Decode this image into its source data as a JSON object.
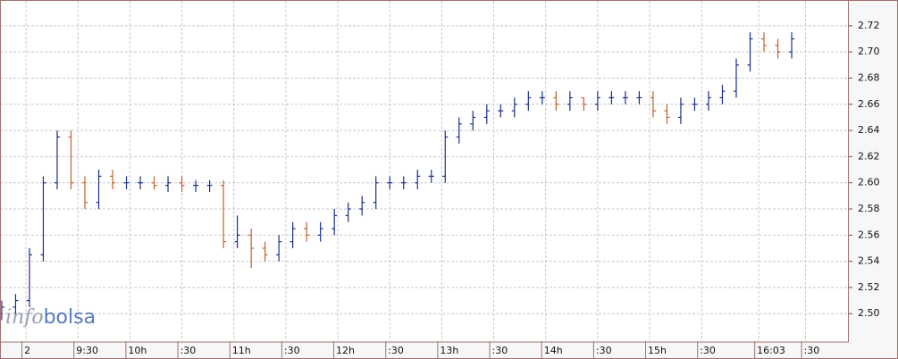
{
  "chart_data": {
    "type": "ohlc",
    "watermark": {
      "prefix": "info",
      "suffix": "bolsa"
    },
    "colors": {
      "up": "#1c2f8c",
      "down": "#c4602a"
    },
    "grid": true,
    "xlim": [
      -15,
      475
    ],
    "ylim": [
      2.479,
      2.739
    ],
    "xticks": [
      {
        "value": 0,
        "label": "2"
      },
      {
        "value": 30,
        "label": "9:30"
      },
      {
        "value": 60,
        "label": "10h"
      },
      {
        "value": 90,
        "label": ":30"
      },
      {
        "value": 120,
        "label": "11h"
      },
      {
        "value": 150,
        "label": ":30"
      },
      {
        "value": 180,
        "label": "12h"
      },
      {
        "value": 210,
        "label": ":30"
      },
      {
        "value": 240,
        "label": "13h"
      },
      {
        "value": 270,
        "label": ":30"
      },
      {
        "value": 300,
        "label": "14h"
      },
      {
        "value": 330,
        "label": ":30"
      },
      {
        "value": 360,
        "label": "15h"
      },
      {
        "value": 390,
        "label": ":30"
      },
      {
        "value": 423,
        "label": "16:03"
      },
      {
        "value": 450,
        "label": ":30"
      }
    ],
    "yticks": [
      {
        "value": 2.5,
        "label": "2.50"
      },
      2.52,
      2.54,
      2.56,
      2.58,
      {
        "value": 2.6,
        "label": "2.60"
      },
      2.62,
      2.64,
      2.66,
      2.68,
      {
        "value": 2.7,
        "label": "2.70"
      },
      2.72
    ],
    "x": [
      -14,
      -6,
      2,
      10,
      18,
      26,
      34,
      42,
      50,
      58,
      66,
      74,
      82,
      90,
      98,
      106,
      114,
      122,
      130,
      138,
      146,
      154,
      162,
      170,
      178,
      186,
      194,
      202,
      210,
      218,
      226,
      234,
      242,
      250,
      258,
      266,
      274,
      282,
      290,
      298,
      306,
      314,
      322,
      330,
      338,
      346,
      354,
      362,
      370,
      378,
      386,
      394,
      402,
      410,
      418,
      426,
      434,
      442
    ],
    "open": [
      2.5,
      2.505,
      2.51,
      2.545,
      2.6,
      2.635,
      2.6,
      2.585,
      2.605,
      2.6,
      2.6,
      2.6,
      2.598,
      2.6,
      2.598,
      2.598,
      2.598,
      2.555,
      2.56,
      2.55,
      2.545,
      2.555,
      2.565,
      2.56,
      2.565,
      2.575,
      2.58,
      2.585,
      2.6,
      2.6,
      2.6,
      2.605,
      2.605,
      2.635,
      2.645,
      2.65,
      2.655,
      2.655,
      2.66,
      2.665,
      2.665,
      2.66,
      2.665,
      2.66,
      2.665,
      2.665,
      2.665,
      2.665,
      2.655,
      2.65,
      2.66,
      2.66,
      2.665,
      2.67,
      2.69,
      2.71,
      2.705,
      2.7
    ],
    "high": [
      2.51,
      2.515,
      2.55,
      2.605,
      2.64,
      2.64,
      2.605,
      2.61,
      2.61,
      2.605,
      2.605,
      2.605,
      2.605,
      2.605,
      2.602,
      2.602,
      2.602,
      2.575,
      2.565,
      2.555,
      2.56,
      2.57,
      2.57,
      2.57,
      2.58,
      2.585,
      2.59,
      2.605,
      2.605,
      2.605,
      2.61,
      2.61,
      2.64,
      2.65,
      2.655,
      2.66,
      2.66,
      2.665,
      2.67,
      2.67,
      2.67,
      2.67,
      2.665,
      2.67,
      2.67,
      2.67,
      2.67,
      2.67,
      2.66,
      2.665,
      2.665,
      2.67,
      2.675,
      2.695,
      2.715,
      2.715,
      2.71,
      2.715
    ],
    "low": [
      2.495,
      2.5,
      2.505,
      2.54,
      2.595,
      2.595,
      2.58,
      2.58,
      2.595,
      2.595,
      2.595,
      2.595,
      2.593,
      2.593,
      2.593,
      2.593,
      2.55,
      2.55,
      2.535,
      2.54,
      2.54,
      2.55,
      2.555,
      2.555,
      2.56,
      2.57,
      2.575,
      2.58,
      2.595,
      2.595,
      2.595,
      2.6,
      2.6,
      2.63,
      2.64,
      2.645,
      2.65,
      2.65,
      2.655,
      2.66,
      2.655,
      2.655,
      2.655,
      2.655,
      2.66,
      2.66,
      2.66,
      2.65,
      2.645,
      2.645,
      2.655,
      2.655,
      2.66,
      2.665,
      2.685,
      2.7,
      2.695,
      2.695
    ],
    "close": [
      2.505,
      2.51,
      2.545,
      2.6,
      2.635,
      2.6,
      2.585,
      2.605,
      2.6,
      2.6,
      2.6,
      2.598,
      2.6,
      2.598,
      2.598,
      2.598,
      2.555,
      2.56,
      2.55,
      2.545,
      2.555,
      2.565,
      2.56,
      2.565,
      2.575,
      2.58,
      2.585,
      2.6,
      2.6,
      2.6,
      2.605,
      2.605,
      2.635,
      2.645,
      2.65,
      2.655,
      2.655,
      2.66,
      2.665,
      2.665,
      2.66,
      2.665,
      2.66,
      2.665,
      2.665,
      2.665,
      2.665,
      2.655,
      2.65,
      2.66,
      2.66,
      2.665,
      2.67,
      2.69,
      2.71,
      2.705,
      2.7,
      2.71
    ]
  }
}
